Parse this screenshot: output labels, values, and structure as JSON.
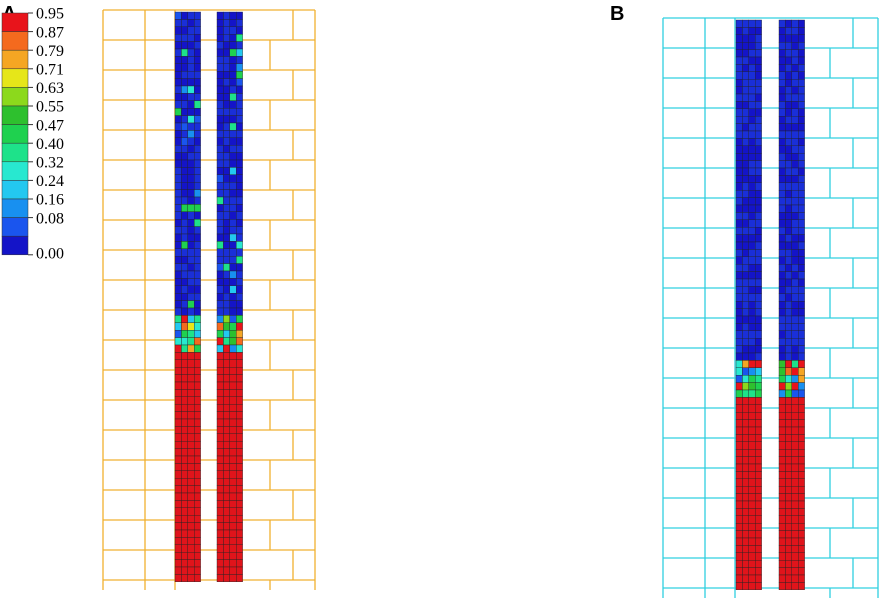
{
  "panels": [
    {
      "label": "A"
    },
    {
      "label": "B"
    }
  ],
  "legend": {
    "levels": [
      "0.95",
      "0.87",
      "0.79",
      "0.71",
      "0.63",
      "0.55",
      "0.47",
      "0.40",
      "0.32",
      "0.24",
      "0.16",
      "0.08",
      "0.00"
    ]
  }
}
